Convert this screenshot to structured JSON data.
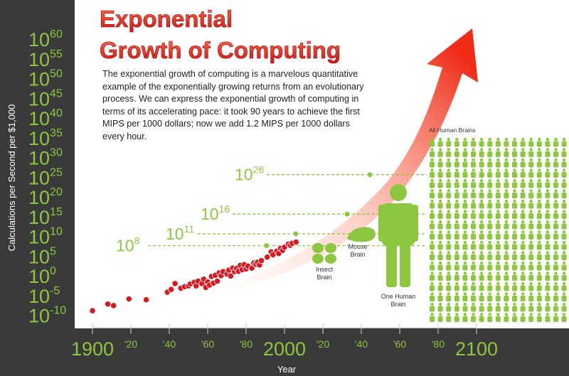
{
  "title": {
    "line1": "Exponential",
    "line2": "Growth of Computing"
  },
  "paragraph": "The exponential growth of computing is a marvelous quantitative example of the exponentially growing returns from an evolutionary process. We can express the exponential growth of computing in terms of its accelerating pace: it took 90 years to achieve the first MIPS per 1000 dollars; now we add 1.2 MIPS per 1000 dollars every hour.",
  "colors": {
    "background": "#3a3a3a",
    "panel": "#ffffff",
    "accent_green": "#8dc63f",
    "data_red": "#d71920"
  },
  "chart_data": {
    "type": "scatter",
    "xlabel": "Year",
    "ylabel": "Calculations per Second per $1,000",
    "xlim": [
      1900,
      2100
    ],
    "ylim": [
      -10,
      60
    ],
    "y_scale": "log10",
    "x_tick_labels": [
      {
        "year": 1900,
        "label": "1900",
        "major": true
      },
      {
        "year": 1920,
        "label": "'20",
        "major": false
      },
      {
        "year": 1940,
        "label": "'40",
        "major": false
      },
      {
        "year": 1960,
        "label": "'60",
        "major": false
      },
      {
        "year": 1980,
        "label": "'80",
        "major": false
      },
      {
        "year": 2000,
        "label": "2000",
        "major": true
      },
      {
        "year": 2020,
        "label": "'20",
        "major": false
      },
      {
        "year": 2040,
        "label": "'40",
        "major": false
      },
      {
        "year": 2060,
        "label": "'60",
        "major": false
      },
      {
        "year": 2080,
        "label": "'80",
        "major": false
      },
      {
        "year": 2100,
        "label": "2100",
        "major": true
      }
    ],
    "y_ticks": [
      {
        "exp": 60,
        "base": "10",
        "sup": "60"
      },
      {
        "exp": 55,
        "base": "10",
        "sup": "55"
      },
      {
        "exp": 50,
        "base": "10",
        "sup": "50"
      },
      {
        "exp": 45,
        "base": "10",
        "sup": "45"
      },
      {
        "exp": 40,
        "base": "10",
        "sup": "40"
      },
      {
        "exp": 35,
        "base": "10",
        "sup": "35"
      },
      {
        "exp": 30,
        "base": "10",
        "sup": "30"
      },
      {
        "exp": 25,
        "base": "10",
        "sup": "25"
      },
      {
        "exp": 20,
        "base": "10",
        "sup": "20"
      },
      {
        "exp": 15,
        "base": "10",
        "sup": "15"
      },
      {
        "exp": 10,
        "base": "10",
        "sup": "10"
      },
      {
        "exp": 5,
        "base": "10",
        "sup": "5"
      },
      {
        "exp": 0,
        "base": "10",
        "sup": "0"
      },
      {
        "exp": -5,
        "base": "10",
        "sup": "-5"
      },
      {
        "exp": -10,
        "base": "10",
        "sup": "-10"
      }
    ],
    "series": [
      {
        "points": [
          {
            "x": 1900,
            "y": -8.5
          },
          {
            "x": 1908,
            "y": -6.8
          },
          {
            "x": 1911,
            "y": -7.2
          },
          {
            "x": 1919,
            "y": -5.5
          },
          {
            "x": 1928,
            "y": -5.7
          },
          {
            "x": 1939,
            "y": -3.8
          },
          {
            "x": 1941,
            "y": -3.1
          },
          {
            "x": 1943,
            "y": -1.6
          },
          {
            "x": 1946,
            "y": -2.8
          },
          {
            "x": 1948,
            "y": -2.4
          },
          {
            "x": 1950,
            "y": -2.2
          },
          {
            "x": 1951,
            "y": -1.7
          },
          {
            "x": 1953,
            "y": -1.3
          },
          {
            "x": 1954,
            "y": -2.2
          },
          {
            "x": 1955,
            "y": -1.0
          },
          {
            "x": 1957,
            "y": -1.6
          },
          {
            "x": 1958,
            "y": -0.5
          },
          {
            "x": 1959,
            "y": -2.6
          },
          {
            "x": 1960,
            "y": -1.2
          },
          {
            "x": 1961,
            "y": -2.0
          },
          {
            "x": 1962,
            "y": 0.2
          },
          {
            "x": 1963,
            "y": -1.5
          },
          {
            "x": 1964,
            "y": 0.5
          },
          {
            "x": 1965,
            "y": -1.0
          },
          {
            "x": 1966,
            "y": 1.1
          },
          {
            "x": 1967,
            "y": 0.4
          },
          {
            "x": 1968,
            "y": 1.4
          },
          {
            "x": 1970,
            "y": 0.8
          },
          {
            "x": 1971,
            "y": 1.8
          },
          {
            "x": 1972,
            "y": 0.3
          },
          {
            "x": 1973,
            "y": 2.3
          },
          {
            "x": 1974,
            "y": 1.4
          },
          {
            "x": 1975,
            "y": 2.2
          },
          {
            "x": 1976,
            "y": 1.5
          },
          {
            "x": 1977,
            "y": 3.0
          },
          {
            "x": 1978,
            "y": 1.9
          },
          {
            "x": 1979,
            "y": 3.2
          },
          {
            "x": 1980,
            "y": 2.1
          },
          {
            "x": 1981,
            "y": 2.8
          },
          {
            "x": 1983,
            "y": 2.3
          },
          {
            "x": 1984,
            "y": 3.6
          },
          {
            "x": 1985,
            "y": 3.3
          },
          {
            "x": 1986,
            "y": 3.8
          },
          {
            "x": 1987,
            "y": 3.1
          },
          {
            "x": 1988,
            "y": 4.2
          },
          {
            "x": 1991,
            "y": 5.1
          },
          {
            "x": 1993,
            "y": 6.4
          },
          {
            "x": 1994,
            "y": 5.7
          },
          {
            "x": 1996,
            "y": 6.6
          },
          {
            "x": 1997,
            "y": 6.0
          },
          {
            "x": 1998,
            "y": 7.3
          },
          {
            "x": 1999,
            "y": 6.8
          },
          {
            "x": 2000,
            "y": 7.6
          },
          {
            "x": 2002,
            "y": 8.4
          },
          {
            "x": 2003,
            "y": 8.1
          },
          {
            "x": 2004,
            "y": 8.6
          },
          {
            "x": 2006,
            "y": 8.9
          }
        ]
      }
    ],
    "thresholds": [
      {
        "sup": "8",
        "exp": 8
      },
      {
        "sup": "11",
        "exp": 11
      },
      {
        "sup": "16",
        "exp": 16
      },
      {
        "sup": "26",
        "exp": 26
      }
    ],
    "annotations": {
      "insect": "Insect\nBrain",
      "mouse": "Mouse\nBrain",
      "human": "One Human\nBrain",
      "all": "All Human Brains"
    }
  }
}
